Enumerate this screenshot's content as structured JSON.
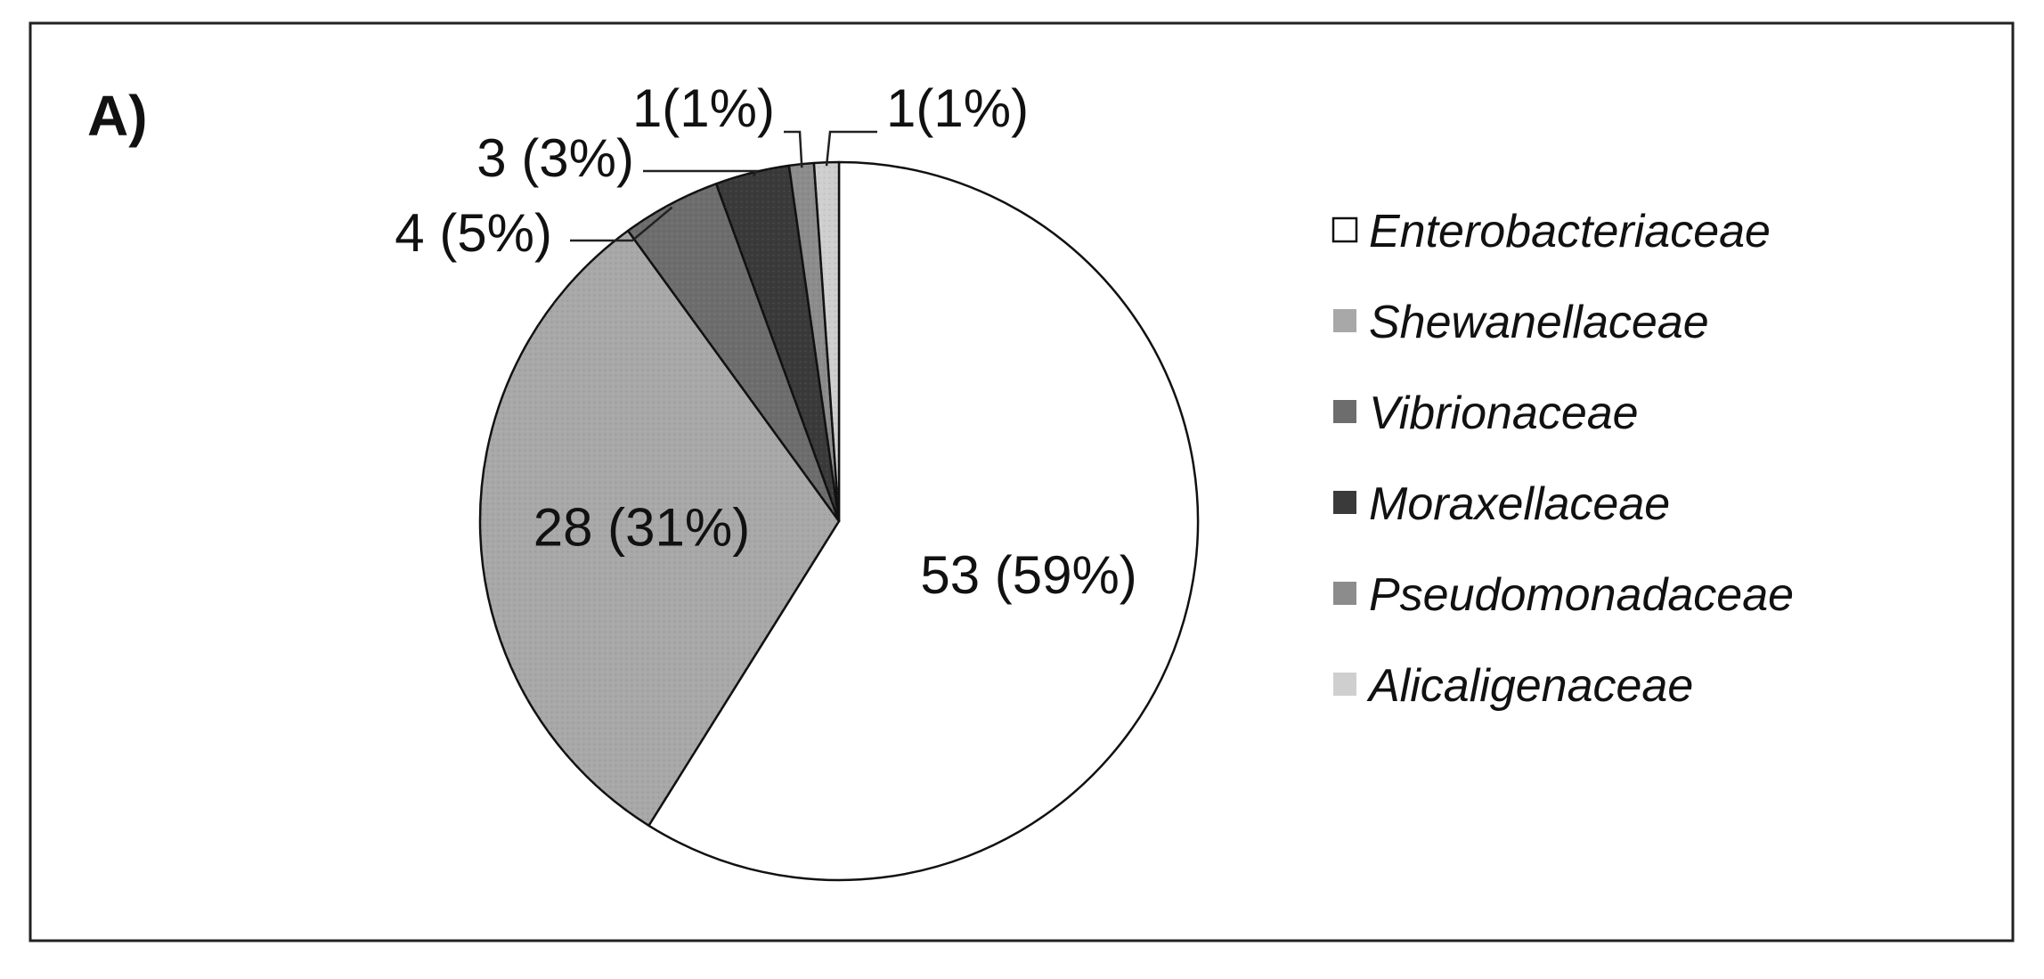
{
  "chart_data": {
    "type": "pie",
    "title": "",
    "panel_label": "A)",
    "legend_position": "right",
    "slices": [
      {
        "name": "Enterobacteriaceae",
        "value": 53,
        "percent": 59,
        "label": "53 (59%)",
        "color": "#ffffff"
      },
      {
        "name": "Shewanellaceae",
        "value": 28,
        "percent": 31,
        "label": "28 (31%)",
        "color": "#a8a8a8"
      },
      {
        "name": "Vibrionaceae",
        "value": 4,
        "percent": 5,
        "label": "4 (5%)",
        "color": "#6d6d6d"
      },
      {
        "name": "Moraxellaceae",
        "value": 3,
        "percent": 3,
        "label": "3 (3%)",
        "color": "#3a3a3a"
      },
      {
        "name": "Pseudomonadaceae",
        "value": 1,
        "percent": 1,
        "label": "1(1%)",
        "color": "#8c8c8c"
      },
      {
        "name": "Alicaligenaceae",
        "value": 1,
        "percent": 1,
        "label": "1(1%)",
        "color": "#cfcfcf"
      }
    ]
  }
}
